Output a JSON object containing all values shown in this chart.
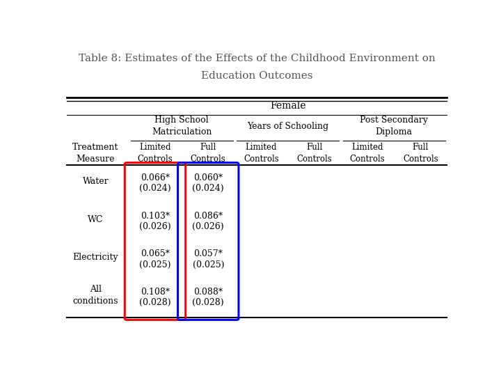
{
  "title_line1": "Table 8: Estimates of the Effects of the Childhood Environment on",
  "title_line2": "Education Outcomes",
  "bg_color": "#ffffff",
  "group_header": "Female",
  "col_group_labels": [
    "High School\nMatriculation",
    "Years of Schooling",
    "Post Secondary\nDiploma"
  ],
  "row_header": "Treatment\nMeasure",
  "sub_labels": [
    "Limited\nControls",
    "Full\nControls",
    "Limited\nControls",
    "Full\nControls",
    "Limited\nControls",
    "Full\nControls"
  ],
  "rows": [
    {
      "label": "Water",
      "values": [
        [
          "0.066*",
          "(0.024)"
        ],
        [
          "0.060*",
          "(0.024)"
        ],
        [
          "",
          ""
        ],
        [
          "",
          ""
        ],
        [
          "",
          ""
        ],
        [
          "",
          ""
        ]
      ]
    },
    {
      "label": "WC",
      "values": [
        [
          "0.103*",
          "(0.026)"
        ],
        [
          "0.086*",
          "(0.026)"
        ],
        [
          "",
          ""
        ],
        [
          "",
          ""
        ],
        [
          "",
          ""
        ],
        [
          "",
          ""
        ]
      ]
    },
    {
      "label": "Electricity",
      "values": [
        [
          "0.065*",
          "(0.025)"
        ],
        [
          "0.057*",
          "(0.025)"
        ],
        [
          "",
          ""
        ],
        [
          "",
          ""
        ],
        [
          "",
          ""
        ],
        [
          "",
          ""
        ]
      ]
    },
    {
      "label": "All\nconditions",
      "values": [
        [
          "0.108*",
          "(0.028)"
        ],
        [
          "0.088*",
          "(0.028)"
        ],
        [
          "",
          ""
        ],
        [
          "",
          ""
        ],
        [
          "",
          ""
        ],
        [
          "",
          ""
        ]
      ]
    }
  ],
  "red_col_idx": 0,
  "blue_col_idx": 1,
  "text_color": "#000000",
  "title_color": "#555555"
}
